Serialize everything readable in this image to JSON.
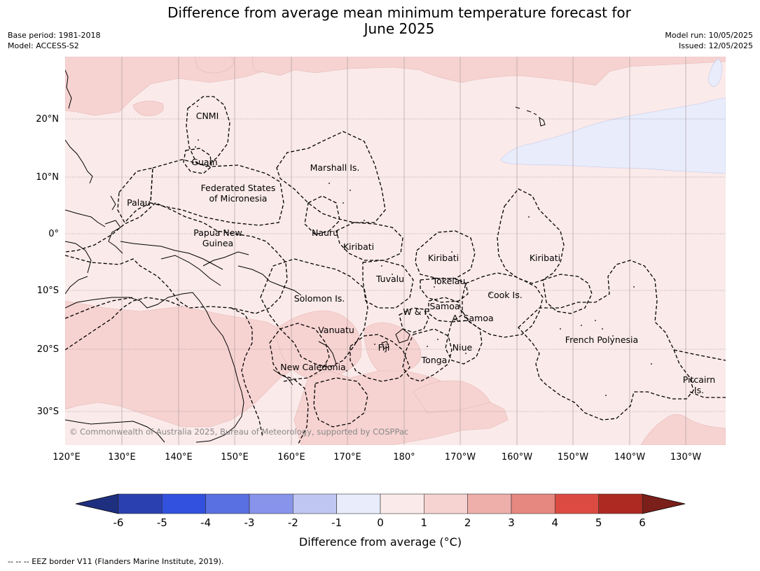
{
  "title_line1": "Difference from average mean minimum temperature forecast for",
  "title_line2": "June 2025",
  "base_period": "Base period: 1981-2018",
  "model": "Model: ACCESS-S2",
  "model_run": "Model run: 10/05/2025",
  "issued": "Issued: 12/05/2025",
  "copyright": "© Commonwealth of Australia 2025, Bureau of Meteorology, supported by COSPPac",
  "footer": "--  --  -- EEZ border V11 (Flanders Marine Institute, 2019).",
  "lon_ticks": [
    "120°E",
    "130°E",
    "140°E",
    "150°E",
    "160°E",
    "170°E",
    "180°",
    "170°W",
    "160°W",
    "150°W",
    "140°W",
    "130°W"
  ],
  "lat_ticks": [
    "20°N",
    "10°N",
    "0°",
    "10°S",
    "20°S",
    "30°S"
  ],
  "region_labels": [
    "CNMI",
    "Guam",
    "Marshall Is.",
    "Federated States",
    "of Micronesia",
    "Palau",
    "Papua New",
    "Guinea",
    "Nauru",
    "Kiribati",
    "Kiribati",
    "Kiribati",
    "Tuvalu",
    "Tokelau",
    "Solomon Is.",
    "Cook Is.",
    "Samoa",
    "W & F",
    "A. Samoa",
    "Vanuatu",
    "Fiji",
    "Niue",
    "French Polynesia",
    "New Caledonia",
    "Tonga",
    "Pitcairn",
    "Is."
  ],
  "colorbar": {
    "ticks": [
      "-6",
      "-5",
      "-4",
      "-3",
      "-2",
      "-1",
      "0",
      "1",
      "2",
      "3",
      "4",
      "5",
      "6"
    ],
    "colors": [
      "#2a3fb0",
      "#3151de",
      "#5870e2",
      "#8794ea",
      "#c0c6f2",
      "#e8ecfb",
      "#fbeaea",
      "#f6d3d1",
      "#eeaeaa",
      "#e68780",
      "#dc4b41",
      "#ad2a22"
    ],
    "under_color": "#1f2f80",
    "over_color": "#7a1f1a",
    "label": "Difference from average (°C)"
  }
}
